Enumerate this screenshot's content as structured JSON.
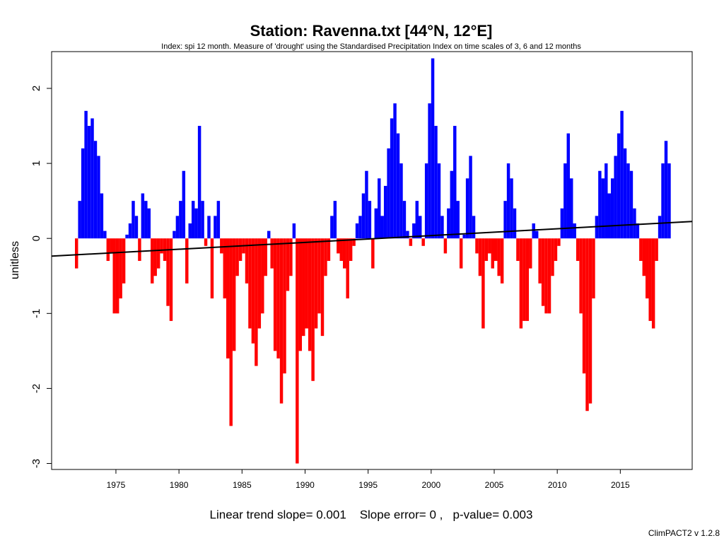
{
  "chart_data": {
    "type": "bar",
    "title": "Station: Ravenna.txt [44°N, 12°E]",
    "subtitle": "Index: spi 12 month. Measure of 'drought' using the Standardised Precipitation Index on time scales of 3, 6 and 12 months",
    "y_label": "unitless",
    "footer": "Linear trend slope= 0.001    Slope error= 0 ,   p-value= 0.003",
    "credit": "ClimPACT2 v 1.2.8",
    "bar_width": 0.25,
    "positive_color": "#0000ff",
    "negative_color": "#ff0000",
    "x": [
      1971.75,
      1972,
      1972.25,
      1972.5,
      1972.75,
      1973,
      1973.25,
      1973.5,
      1973.75,
      1974,
      1974.25,
      1974.5,
      1974.75,
      1975,
      1975.25,
      1975.5,
      1975.75,
      1976,
      1976.25,
      1976.5,
      1976.75,
      1977,
      1977.25,
      1977.5,
      1977.75,
      1978,
      1978.25,
      1978.5,
      1978.75,
      1979,
      1979.25,
      1979.5,
      1979.75,
      1980,
      1980.25,
      1980.5,
      1980.75,
      1981,
      1981.25,
      1981.5,
      1981.75,
      1982,
      1982.25,
      1982.5,
      1982.75,
      1983,
      1983.25,
      1983.5,
      1983.75,
      1984,
      1984.25,
      1984.5,
      1984.75,
      1985,
      1985.25,
      1985.5,
      1985.75,
      1986,
      1986.25,
      1986.5,
      1986.75,
      1987,
      1987.25,
      1987.5,
      1987.75,
      1988,
      1988.25,
      1988.5,
      1988.75,
      1989,
      1989.25,
      1989.5,
      1989.75,
      1990,
      1990.25,
      1990.5,
      1990.75,
      1991,
      1991.25,
      1991.5,
      1991.75,
      1992,
      1992.25,
      1992.5,
      1992.75,
      1993,
      1993.25,
      1993.5,
      1993.75,
      1994,
      1994.25,
      1994.5,
      1994.75,
      1995,
      1995.25,
      1995.5,
      1995.75,
      1996,
      1996.25,
      1996.5,
      1996.75,
      1997,
      1997.25,
      1997.5,
      1997.75,
      1998,
      1998.25,
      1998.5,
      1998.75,
      1999,
      1999.25,
      1999.5,
      1999.75,
      2000,
      2000.25,
      2000.5,
      2000.75,
      2001,
      2001.25,
      2001.5,
      2001.75,
      2002,
      2002.25,
      2002.5,
      2002.75,
      2003,
      2003.25,
      2003.5,
      2003.75,
      2004,
      2004.25,
      2004.5,
      2004.75,
      2005,
      2005.25,
      2005.5,
      2005.75,
      2006,
      2006.25,
      2006.5,
      2006.75,
      2007,
      2007.25,
      2007.5,
      2007.75,
      2008,
      2008.25,
      2008.5,
      2008.75,
      2009,
      2009.25,
      2009.5,
      2009.75,
      2010,
      2010.25,
      2010.5,
      2010.75,
      2011,
      2011.25,
      2011.5,
      2011.75,
      2012,
      2012.25,
      2012.5,
      2012.75,
      2013,
      2013.25,
      2013.5,
      2013.75,
      2014,
      2014.25,
      2014.5,
      2014.75,
      2015,
      2015.25,
      2015.5,
      2015.75,
      2016,
      2016.25,
      2016.5,
      2016.75,
      2017,
      2017.25,
      2017.5,
      2017.75,
      2018,
      2018.25,
      2018.5,
      2018.75
    ],
    "values": [
      -0.4,
      0.5,
      1.2,
      1.7,
      1.5,
      1.6,
      1.3,
      1.1,
      0.6,
      0.1,
      -0.3,
      -0.2,
      -1.0,
      -1.0,
      -0.8,
      -0.6,
      0.05,
      0.2,
      0.5,
      0.3,
      -0.3,
      0.6,
      0.5,
      0.4,
      -0.6,
      -0.5,
      -0.4,
      -0.2,
      -0.3,
      -0.9,
      -1.1,
      0.1,
      0.3,
      0.5,
      0.9,
      -0.6,
      0.2,
      0.5,
      0.4,
      1.5,
      0.5,
      -0.1,
      0.3,
      -0.8,
      0.3,
      0.5,
      -0.2,
      -0.8,
      -1.6,
      -2.5,
      -1.5,
      -0.5,
      -0.3,
      -0.2,
      -0.6,
      -1.2,
      -1.4,
      -1.7,
      -1.2,
      -1.0,
      -0.5,
      0.1,
      -0.4,
      -1.5,
      -1.6,
      -2.2,
      -1.8,
      -0.7,
      -0.5,
      0.2,
      -3.0,
      -1.5,
      -1.3,
      -1.2,
      -1.5,
      -1.9,
      -1.2,
      -1.0,
      -1.3,
      -0.5,
      -0.3,
      0.3,
      0.5,
      -0.2,
      -0.3,
      -0.4,
      -0.8,
      -0.3,
      -0.1,
      0.2,
      0.3,
      0.6,
      0.9,
      0.5,
      -0.4,
      0.4,
      0.8,
      0.3,
      0.7,
      1.2,
      1.6,
      1.8,
      1.4,
      1.0,
      0.5,
      0.1,
      -0.1,
      0.2,
      0.5,
      0.3,
      -0.1,
      1.0,
      1.8,
      2.4,
      1.5,
      1.0,
      0.3,
      -0.2,
      0.4,
      0.9,
      1.5,
      0.5,
      -0.4,
      0.05,
      0.8,
      1.1,
      0.3,
      -0.2,
      -0.5,
      -1.2,
      -0.3,
      -0.2,
      -0.4,
      -0.3,
      -0.5,
      -0.6,
      0.5,
      1.0,
      0.8,
      0.4,
      -0.3,
      -1.2,
      -1.1,
      -1.1,
      -0.4,
      0.2,
      0.1,
      -0.6,
      -0.9,
      -1.0,
      -1.0,
      -0.5,
      -0.3,
      -0.1,
      0.4,
      1.0,
      1.4,
      0.8,
      0.2,
      -0.3,
      -1.0,
      -1.8,
      -2.3,
      -2.2,
      -0.8,
      0.3,
      0.9,
      0.8,
      1.0,
      0.6,
      0.8,
      1.1,
      1.4,
      1.7,
      1.2,
      1.0,
      0.9,
      0.4,
      0.2,
      -0.3,
      -0.5,
      -0.8,
      -1.1,
      -1.2,
      -0.3,
      0.3,
      1.0,
      1.3,
      1.0
    ],
    "trend": {
      "color": "#000000",
      "x": [
        1969.9,
        2020.7
      ],
      "values": [
        -0.236,
        0.226
      ]
    },
    "xlim": [
      1969.9,
      2020.7
    ],
    "xticks": [
      1975,
      1980,
      1985,
      1990,
      1995,
      2000,
      2005,
      2010,
      2015
    ],
    "ylim": [
      -3.08,
      2.49
    ],
    "yticks": [
      -3,
      -2,
      -1,
      0,
      1,
      2
    ]
  }
}
